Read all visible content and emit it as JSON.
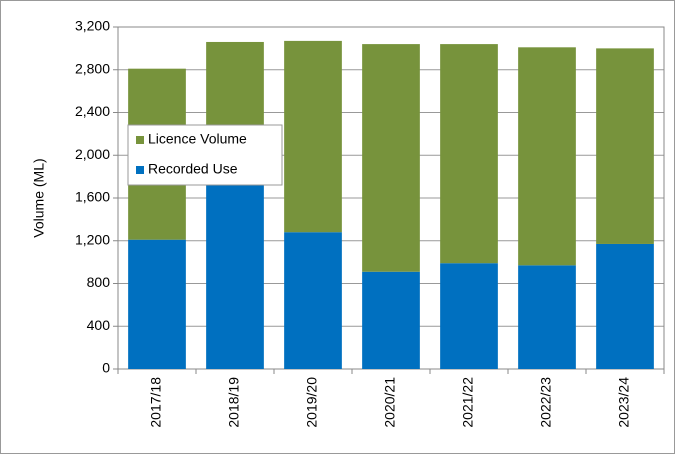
{
  "chart_data": {
    "type": "stacked_bar",
    "y_label": "Volume (ML)",
    "categories": [
      "2017/18",
      "2018/19",
      "2019/20",
      "2020/21",
      "2021/22",
      "2022/23",
      "2023/24"
    ],
    "series": [
      {
        "name": "Recorded Use",
        "color": "#0070c0",
        "values": [
          1210,
          1720,
          1280,
          910,
          990,
          970,
          1170
        ]
      },
      {
        "name": "Licence Volume",
        "color": "#77933c",
        "values": [
          1600,
          1340,
          1790,
          2130,
          2050,
          2040,
          1830
        ]
      }
    ],
    "ylim": [
      0,
      3200
    ],
    "yticks": [
      0,
      400,
      800,
      {
        "value": 1200,
        "label": "1,200"
      },
      {
        "value": 1600,
        "label": "1,600"
      },
      {
        "value": 2000,
        "label": "2,000"
      },
      {
        "value": 2400,
        "label": "2,400"
      },
      {
        "value": 2800,
        "label": "2,800"
      },
      {
        "value": 3200,
        "label": "3,200"
      }
    ],
    "grid": true,
    "legend": "upper-left"
  }
}
